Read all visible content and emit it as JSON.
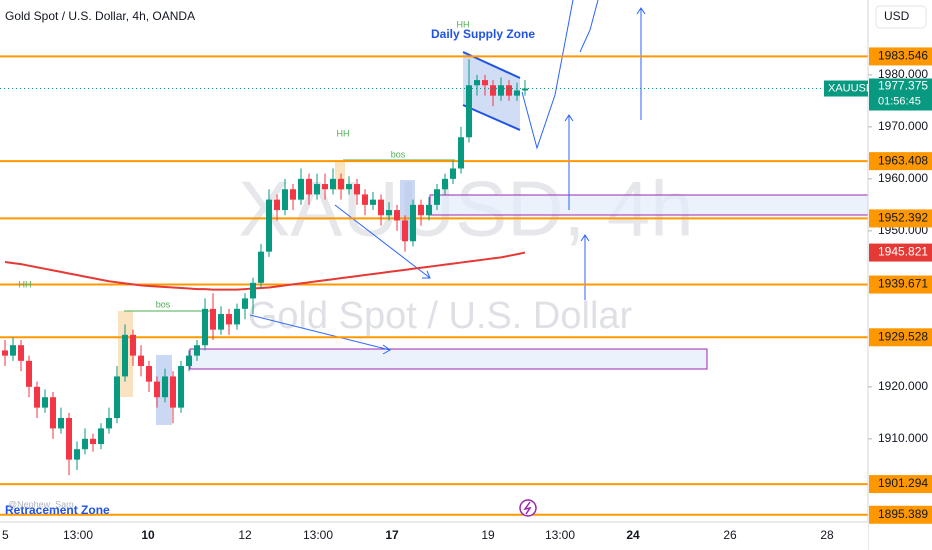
{
  "header": {
    "symbol_title": "Gold Spot / U.S. Dollar, 4h, OANDA",
    "currency": "USD"
  },
  "chart_data": {
    "type": "candlestick",
    "ylim": [
      1894,
      1994.4
    ],
    "yticks": [
      {
        "value": 1980,
        "label": "1980.000"
      },
      {
        "value": 1970,
        "label": "1970.000"
      },
      {
        "value": 1960,
        "label": "1960.000"
      },
      {
        "value": 1950,
        "label": "1950.000"
      },
      {
        "value": 1920,
        "label": "1920.000"
      },
      {
        "value": 1910,
        "label": "1910.000"
      }
    ],
    "x_labels": [
      "5",
      "13:00",
      "10",
      "12",
      "13:00",
      "17",
      "19",
      "13:00",
      "24",
      "26",
      "28"
    ],
    "up_color": "#089981",
    "down_color": "#f23645",
    "grid": false,
    "candles": [
      [
        1927,
        1929,
        1924,
        1926
      ],
      [
        1926,
        1929.5,
        1925,
        1928
      ],
      [
        1928,
        1929,
        1923,
        1925
      ],
      [
        1925,
        1926,
        1918,
        1920
      ],
      [
        1920,
        1921,
        1914,
        1916
      ],
      [
        1916,
        1919.5,
        1915,
        1918
      ],
      [
        1918,
        1919,
        1910,
        1912
      ],
      [
        1912,
        1916,
        1911,
        1914
      ],
      [
        1914,
        1915,
        1903,
        1906
      ],
      [
        1906,
        1909.5,
        1904,
        1908
      ],
      [
        1908,
        1912,
        1907,
        1910
      ],
      [
        1910,
        1911,
        1907.5,
        1909
      ],
      [
        1909,
        1913,
        1908,
        1912
      ],
      [
        1912,
        1916,
        1911,
        1914
      ],
      [
        1914,
        1924,
        1913,
        1922
      ],
      [
        1922,
        1932,
        1921,
        1930
      ],
      [
        1930,
        1931,
        1924,
        1926
      ],
      [
        1926,
        1928,
        1922,
        1924
      ],
      [
        1924,
        1925,
        1919,
        1921
      ],
      [
        1921,
        1922,
        1916,
        1918
      ],
      [
        1918,
        1923.5,
        1917,
        1922
      ],
      [
        1922,
        1923,
        1913,
        1916
      ],
      [
        1916,
        1925,
        1915,
        1924
      ],
      [
        1924,
        1927,
        1923,
        1926
      ],
      [
        1926,
        1929,
        1925,
        1928
      ],
      [
        1928,
        1937,
        1927,
        1935
      ],
      [
        1935,
        1938,
        1929,
        1931
      ],
      [
        1931,
        1935.5,
        1930,
        1934
      ],
      [
        1934,
        1935,
        1930,
        1932
      ],
      [
        1932,
        1936,
        1931,
        1935
      ],
      [
        1935,
        1938,
        1933,
        1937
      ],
      [
        1937,
        1941,
        1934,
        1940
      ],
      [
        1940,
        1947.5,
        1939,
        1946
      ],
      [
        1946,
        1958,
        1945,
        1956
      ],
      [
        1956,
        1957,
        1952,
        1954
      ],
      [
        1954,
        1960,
        1953,
        1958
      ],
      [
        1958,
        1959,
        1954,
        1956
      ],
      [
        1956,
        1962,
        1955,
        1960
      ],
      [
        1960,
        1961,
        1955,
        1957
      ],
      [
        1957,
        1961,
        1956,
        1959
      ],
      [
        1959,
        1961,
        1956,
        1958
      ],
      [
        1958,
        1962,
        1957,
        1960
      ],
      [
        1960,
        1961,
        1956,
        1958
      ],
      [
        1958,
        1960.5,
        1957,
        1959
      ],
      [
        1959,
        1960,
        1955,
        1957
      ],
      [
        1957,
        1958,
        1953,
        1955
      ],
      [
        1955,
        1957.5,
        1954,
        1956
      ],
      [
        1956,
        1957,
        1951,
        1953
      ],
      [
        1953,
        1955.5,
        1952,
        1954
      ],
      [
        1954,
        1955,
        1950,
        1952
      ],
      [
        1952,
        1953,
        1946,
        1948
      ],
      [
        1948,
        1956,
        1947,
        1955
      ],
      [
        1955,
        1956,
        1951,
        1953
      ],
      [
        1953,
        1956.5,
        1952,
        1955
      ],
      [
        1955,
        1959,
        1954,
        1958
      ],
      [
        1958,
        1961,
        1957,
        1960
      ],
      [
        1960,
        1963.5,
        1959,
        1962
      ],
      [
        1962,
        1970,
        1961,
        1968
      ],
      [
        1968,
        1983,
        1967,
        1978
      ],
      [
        1978,
        1980,
        1976,
        1979
      ],
      [
        1979,
        1980,
        1976,
        1978
      ],
      [
        1978,
        1979,
        1974,
        1976
      ],
      [
        1976,
        1979.5,
        1975,
        1978
      ],
      [
        1978,
        1979,
        1975,
        1976
      ],
      [
        1976,
        1978.5,
        1975,
        1977
      ],
      [
        1977,
        1979,
        1976,
        1977.375
      ]
    ],
    "moving_average": {
      "color": "#e53935",
      "values": [
        1944,
        1943.8,
        1943.6,
        1943.3,
        1943,
        1942.7,
        1942.4,
        1942.1,
        1941.8,
        1941.5,
        1941.2,
        1940.9,
        1940.6,
        1940.3,
        1940.1,
        1939.9,
        1939.7,
        1939.5,
        1939.4,
        1939.3,
        1939.2,
        1939.1,
        1939,
        1938.9,
        1938.8,
        1938.8,
        1938.7,
        1938.7,
        1938.7,
        1938.7,
        1938.8,
        1938.9,
        1939,
        1939.1,
        1939.3,
        1939.5,
        1939.7,
        1939.9,
        1940.1,
        1940.3,
        1940.5,
        1940.7,
        1940.9,
        1941.1,
        1941.3,
        1941.5,
        1941.7,
        1941.9,
        1942.1,
        1942.3,
        1942.5,
        1942.7,
        1942.9,
        1943.1,
        1943.3,
        1943.5,
        1943.7,
        1943.9,
        1944.1,
        1944.3,
        1944.5,
        1944.7,
        1944.9,
        1945.2,
        1945.5,
        1945.821
      ]
    },
    "levels": [
      1983.546,
      1963.408,
      1952.392,
      1939.671,
      1929.528,
      1901.294,
      1895.389
    ],
    "level_color": "#ff9800",
    "price_tag": {
      "symbol": "XAUUSD",
      "countdown": "01:56:45"
    },
    "annotations": {
      "supply_zone": "Daily Supply Zone",
      "retracement_zone": "Retracement Zone",
      "hh": [
        "HH",
        "HH",
        "HH"
      ],
      "bos": [
        "bos",
        "bos"
      ],
      "credit": "@Nephew_Sam"
    },
    "watermark": {
      "line1": "XAUUSD, 4h",
      "line2": "Gold Spot / U.S. Dollar"
    }
  }
}
